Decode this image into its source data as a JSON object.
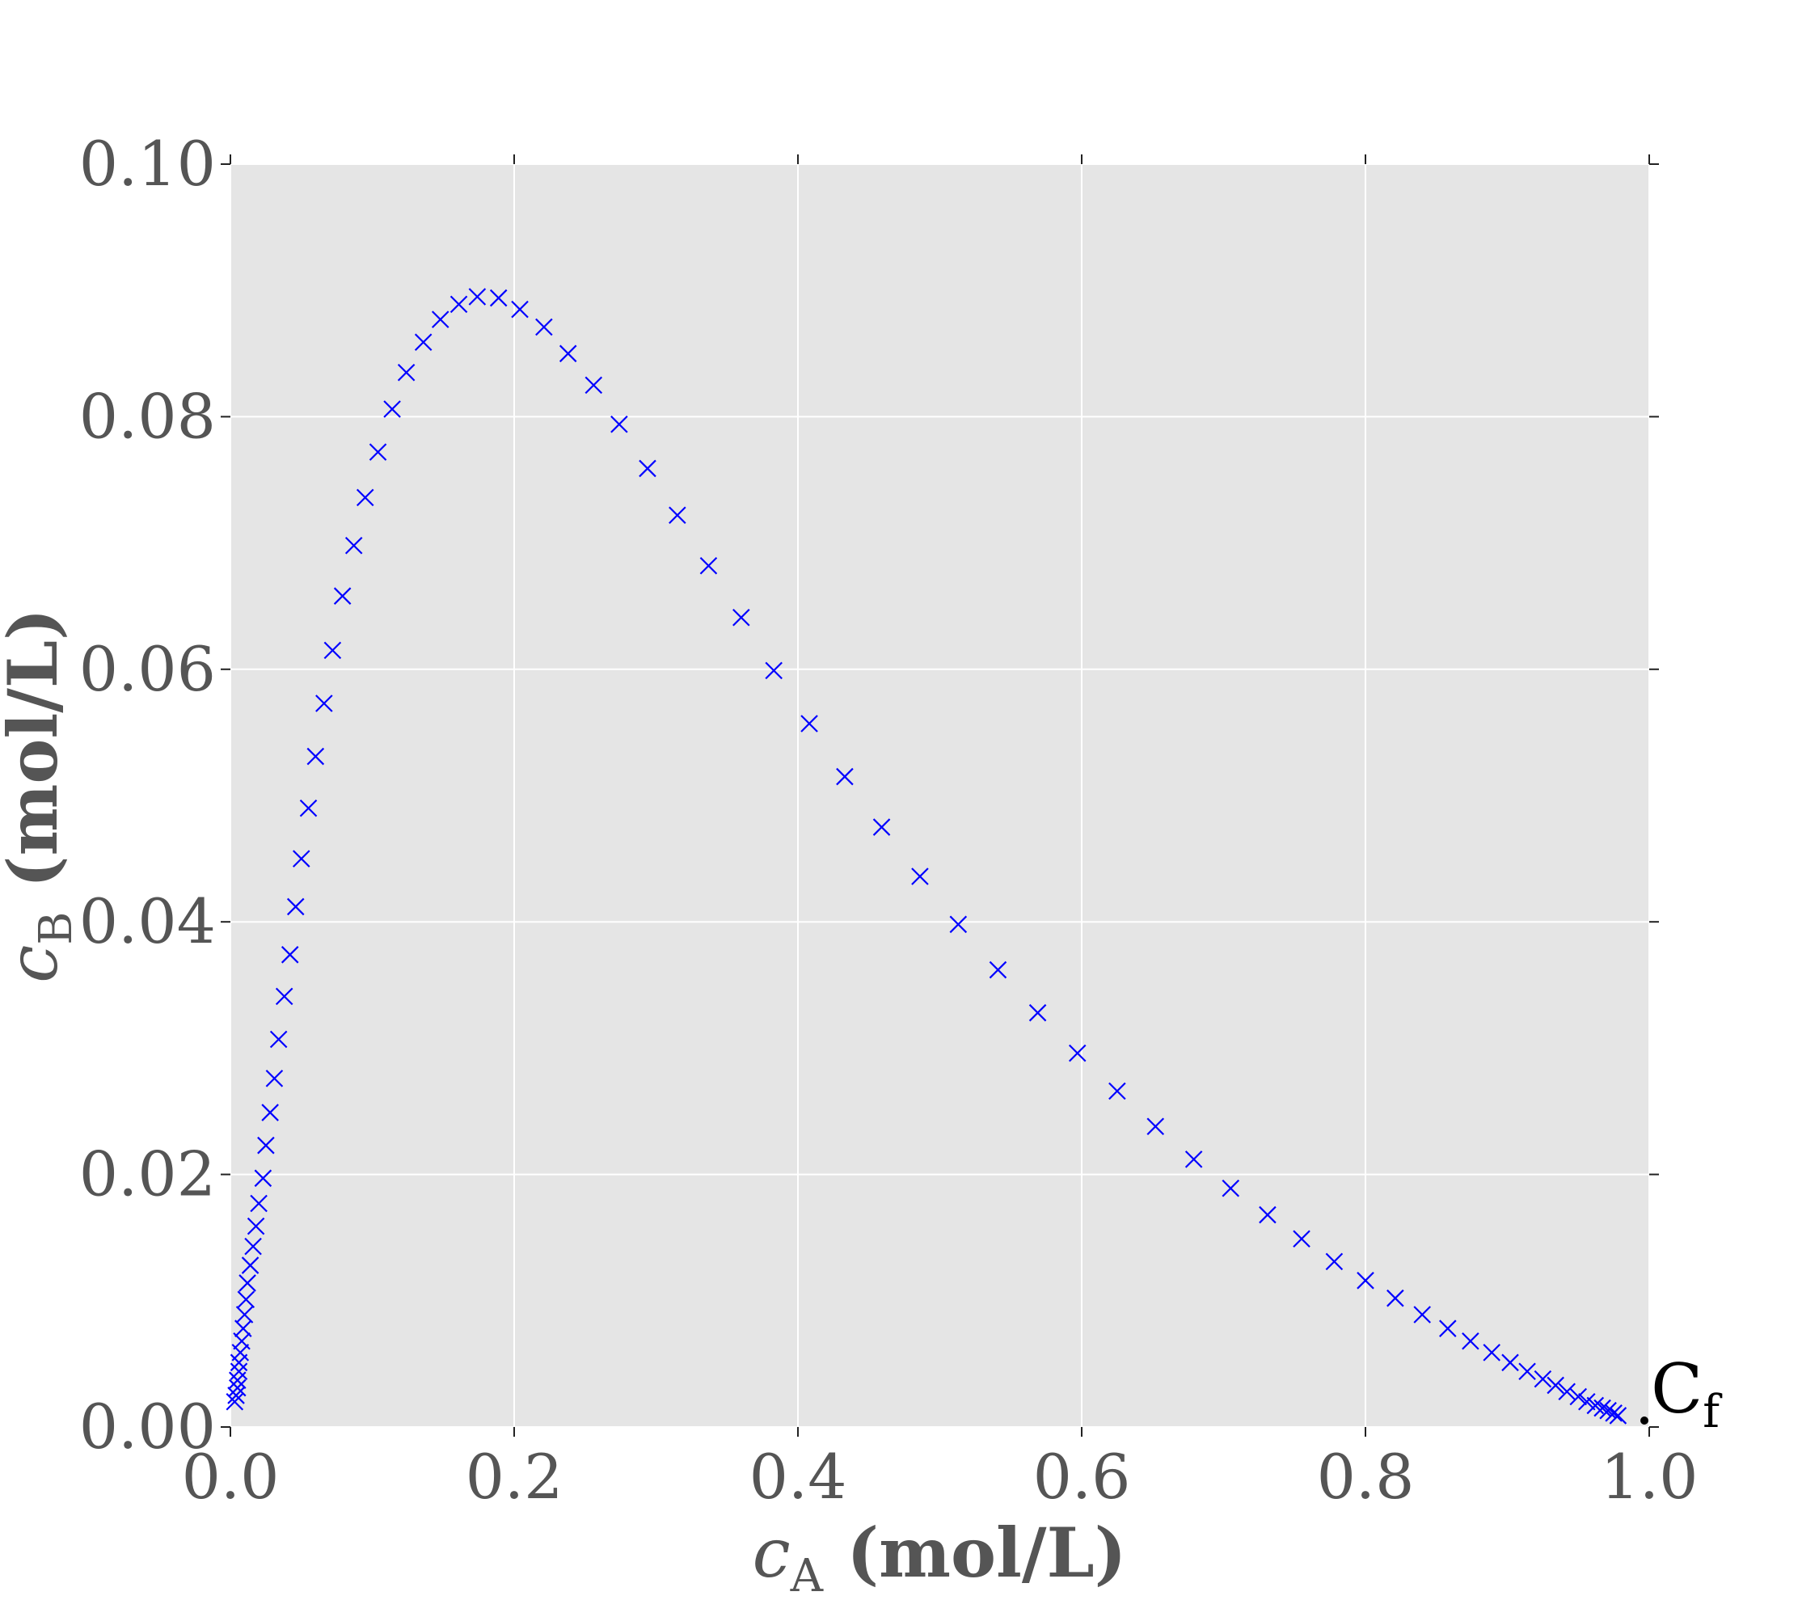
{
  "chart_data": {
    "type": "scatter",
    "marker": "x",
    "colors": {
      "marker": "#0000ff",
      "plot_background": "#e5e5e5",
      "grid": "#ffffff",
      "tick_text": "#555555",
      "annotation": "#000000"
    },
    "grid": true,
    "xlim": [
      0.0,
      1.0
    ],
    "ylim": [
      0.0,
      0.1
    ],
    "x_ticks": [
      "0.0",
      "0.2",
      "0.4",
      "0.6",
      "0.8",
      "1.0"
    ],
    "y_ticks": [
      "0.00",
      "0.02",
      "0.04",
      "0.06",
      "0.08",
      "0.10"
    ],
    "xlabel": {
      "var": "c",
      "sub": "A",
      "unit": " (mol/L)"
    },
    "ylabel": {
      "var": "c",
      "sub": "B",
      "unit": " (mol/L)"
    },
    "annotation": {
      "text": "C",
      "sub": "f",
      "x": 1.0,
      "y": 0.0
    },
    "series": [
      {
        "x": [
          0.003,
          0.004,
          0.005,
          0.005,
          0.006,
          0.006,
          0.007,
          0.008,
          0.009,
          0.01,
          0.011,
          0.012,
          0.014,
          0.016,
          0.018,
          0.02,
          0.023,
          0.025,
          0.028,
          0.031,
          0.034,
          0.038,
          0.042,
          0.046,
          0.05,
          0.055,
          0.06,
          0.066,
          0.072,
          0.079,
          0.087,
          0.095,
          0.104,
          0.114,
          0.124,
          0.136,
          0.148,
          0.161,
          0.174,
          0.189,
          0.204,
          0.221,
          0.238,
          0.256,
          0.274,
          0.294,
          0.315,
          0.337,
          0.36,
          0.383,
          0.408,
          0.433,
          0.459,
          0.486,
          0.513,
          0.541,
          0.569,
          0.597,
          0.625,
          0.652,
          0.679,
          0.705,
          0.731,
          0.755,
          0.778,
          0.8,
          0.821,
          0.84,
          0.858,
          0.874,
          0.889,
          0.902,
          0.914,
          0.925,
          0.934,
          0.942,
          0.95,
          0.956,
          0.962,
          0.967,
          0.971,
          0.975,
          0.978
        ],
        "y": [
          0.002,
          0.0025,
          0.0031,
          0.0037,
          0.0044,
          0.0051,
          0.0059,
          0.0068,
          0.0078,
          0.0089,
          0.0101,
          0.0114,
          0.0128,
          0.0143,
          0.0159,
          0.0177,
          0.0197,
          0.0223,
          0.0249,
          0.0276,
          0.0307,
          0.0341,
          0.0374,
          0.0412,
          0.045,
          0.049,
          0.0531,
          0.0573,
          0.0615,
          0.0658,
          0.0698,
          0.0736,
          0.0772,
          0.0806,
          0.0835,
          0.0859,
          0.0877,
          0.0889,
          0.0895,
          0.0894,
          0.0885,
          0.0871,
          0.085,
          0.0825,
          0.0794,
          0.0759,
          0.0722,
          0.0682,
          0.0641,
          0.0599,
          0.0557,
          0.0515,
          0.0475,
          0.0436,
          0.0398,
          0.0362,
          0.0328,
          0.0296,
          0.0266,
          0.0238,
          0.0212,
          0.0189,
          0.0168,
          0.0149,
          0.0131,
          0.0116,
          0.0102,
          0.0089,
          0.0078,
          0.0068,
          0.0059,
          0.0051,
          0.0044,
          0.0038,
          0.0033,
          0.0028,
          0.0024,
          0.002,
          0.0017,
          0.0015,
          0.0013,
          0.0011,
          0.0009
        ]
      }
    ]
  }
}
